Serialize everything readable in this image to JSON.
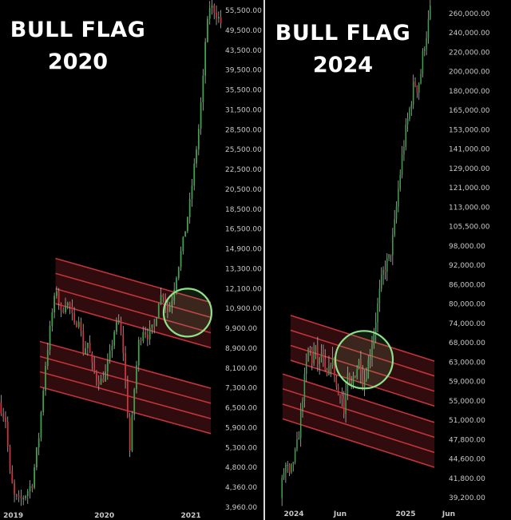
{
  "left_title": {
    "line1": "BULL FLAG",
    "line2": "2020"
  },
  "right_title": {
    "line1": "BULL FLAG",
    "line2": "2024"
  },
  "colors": {
    "up": "#3fa34d",
    "down": "#c8373e",
    "wick": "#b3b3b3",
    "channel": "#c2343c",
    "channel_fill": "#6b1a1f",
    "circle": "#8ee38a",
    "axis_text": "#c8c8c8"
  },
  "chart_data": [
    {
      "type": "candlestick",
      "title": "BULL FLAG 2020",
      "x_ticks": [
        "2019",
        "2020",
        "2021"
      ],
      "y_scale": "log",
      "ylim": [
        3600,
        58000
      ],
      "y_ticks": [
        "55,500.00",
        "49,500.00",
        "43,500.00",
        "39,500.00",
        "35,500.00",
        "31,500.00",
        "28,500.00",
        "25,500.00",
        "22,500.00",
        "20,500.00",
        "18,500.00",
        "16,500.00",
        "14,900.00",
        "13,300.00",
        "12,100.00",
        "10,900.00",
        "9,900.00",
        "8,900.00",
        "8,100.00",
        "7,300.00",
        "6,500.00",
        "5,900.00",
        "5,300.00",
        "4,800.00",
        "4,360.00",
        "3,960.00"
      ],
      "path": [
        [
          0.0,
          6400
        ],
        [
          0.03,
          5800
        ],
        [
          0.05,
          4300
        ],
        [
          0.07,
          3800
        ],
        [
          0.09,
          3700
        ],
        [
          0.12,
          3850
        ],
        [
          0.15,
          4100
        ],
        [
          0.18,
          5300
        ],
        [
          0.21,
          7900
        ],
        [
          0.24,
          10500
        ],
        [
          0.26,
          12000
        ],
        [
          0.28,
          10400
        ],
        [
          0.3,
          11200
        ],
        [
          0.32,
          10800
        ],
        [
          0.34,
          9700
        ],
        [
          0.36,
          10300
        ],
        [
          0.38,
          8500
        ],
        [
          0.4,
          8900
        ],
        [
          0.42,
          7800
        ],
        [
          0.44,
          7300
        ],
        [
          0.46,
          7200
        ],
        [
          0.48,
          7500
        ],
        [
          0.5,
          8300
        ],
        [
          0.52,
          9500
        ],
        [
          0.54,
          10000
        ],
        [
          0.56,
          8500
        ],
        [
          0.58,
          6000
        ],
        [
          0.59,
          4900
        ],
        [
          0.61,
          6900
        ],
        [
          0.63,
          8900
        ],
        [
          0.65,
          9600
        ],
        [
          0.67,
          9300
        ],
        [
          0.7,
          9700
        ],
        [
          0.72,
          11300
        ],
        [
          0.74,
          11700
        ],
        [
          0.76,
          10600
        ],
        [
          0.78,
          11400
        ],
        [
          0.8,
          13000
        ],
        [
          0.83,
          15500
        ],
        [
          0.86,
          19200
        ],
        [
          0.88,
          23500
        ],
        [
          0.9,
          29000
        ],
        [
          0.92,
          38000
        ],
        [
          0.93,
          47000
        ],
        [
          0.95,
          57000
        ],
        [
          0.97,
          56000
        ],
        [
          1.0,
          52000
        ]
      ],
      "channels": [
        {
          "from": [
            0.25,
            12500
          ],
          "to": [
            0.95,
            9800
          ],
          "width_pct": 9
        },
        {
          "from": [
            0.18,
            7900
          ],
          "to": [
            0.95,
            6100
          ],
          "width_pct": 9
        }
      ],
      "highlight": {
        "at": [
          0.845,
          10500
        ]
      }
    },
    {
      "type": "candlestick",
      "title": "BULL FLAG 2024",
      "x_ticks": [
        "2024",
        "Jun",
        "2025",
        "Jun"
      ],
      "y_scale": "log",
      "ylim": [
        37000,
        270000
      ],
      "y_ticks": [
        "260,000.00",
        "240,000.00",
        "220,000.00",
        "200,000.00",
        "180,000.00",
        "165,000.00",
        "153,000.00",
        "141,000.00",
        "129,000.00",
        "121,000.00",
        "113,000.00",
        "105,500.00",
        "98,000.00",
        "92,000.00",
        "86,000.00",
        "80,000.00",
        "74,000.00",
        "68,000.00",
        "63,000.00",
        "59,000.00",
        "55,000.00",
        "51,000.00",
        "47,800.00",
        "44,600.00",
        "41,800.00",
        "39,200.00"
      ],
      "path": [
        [
          0.0,
          38000
        ],
        [
          0.02,
          42000
        ],
        [
          0.04,
          43500
        ],
        [
          0.06,
          41000
        ],
        [
          0.08,
          44000
        ],
        [
          0.1,
          45500
        ],
        [
          0.12,
          50000
        ],
        [
          0.14,
          57000
        ],
        [
          0.16,
          63000
        ],
        [
          0.18,
          70000
        ],
        [
          0.2,
          66000
        ],
        [
          0.22,
          69000
        ],
        [
          0.24,
          64000
        ],
        [
          0.26,
          68000
        ],
        [
          0.28,
          62000
        ],
        [
          0.3,
          61000
        ],
        [
          0.32,
          67000
        ],
        [
          0.34,
          63000
        ],
        [
          0.36,
          57000
        ],
        [
          0.38,
          59000
        ],
        [
          0.4,
          53000
        ],
        [
          0.42,
          61000
        ],
        [
          0.44,
          58000
        ],
        [
          0.46,
          62000
        ],
        [
          0.48,
          64000
        ],
        [
          0.5,
          66000
        ],
        [
          0.52,
          60000
        ],
        [
          0.54,
          63000
        ],
        [
          0.56,
          67000
        ],
        [
          0.58,
          72000
        ],
        [
          0.6,
          78000
        ],
        [
          0.62,
          85000
        ],
        [
          0.64,
          92000
        ],
        [
          0.66,
          96000
        ],
        [
          0.68,
          98000
        ],
        [
          0.7,
          104000
        ],
        [
          0.72,
          115000
        ],
        [
          0.74,
          130000
        ],
        [
          0.76,
          145000
        ],
        [
          0.78,
          160000
        ],
        [
          0.8,
          172000
        ],
        [
          0.82,
          185000
        ],
        [
          0.84,
          200000
        ],
        [
          0.86,
          195000
        ],
        [
          0.88,
          206000
        ],
        [
          0.9,
          230000
        ],
        [
          0.92,
          245000
        ],
        [
          0.94,
          265000
        ]
      ],
      "channels": [
        {
          "from": [
            0.06,
            72000
          ],
          "to": [
            0.96,
            60000
          ],
          "width_pct": 9
        },
        {
          "from": [
            0.01,
            57000
          ],
          "to": [
            0.96,
            47000
          ],
          "width_pct": 9
        }
      ],
      "highlight": {
        "at": [
          0.52,
          66000
        ]
      }
    }
  ]
}
